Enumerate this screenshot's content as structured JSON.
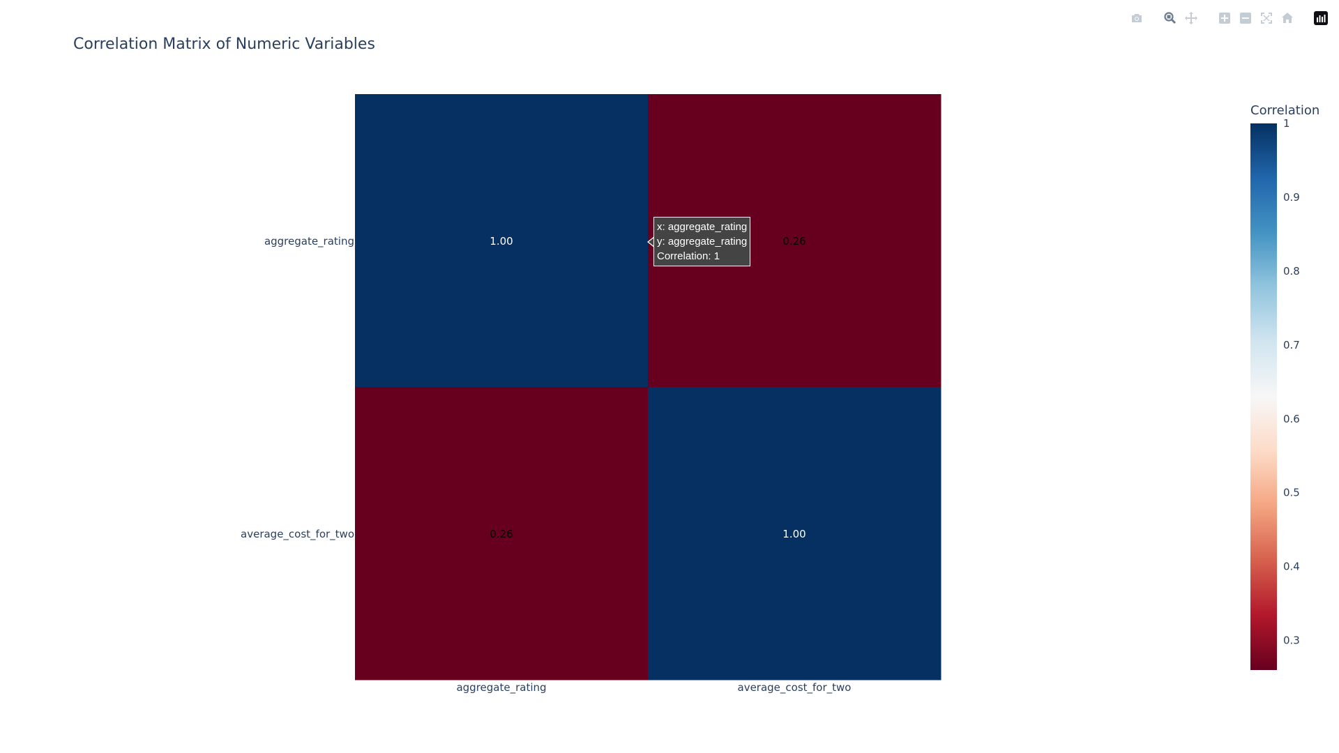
{
  "chart_data": {
    "type": "heatmap",
    "title": "Correlation Matrix of Numeric Variables",
    "x": [
      "aggregate_rating",
      "average_cost_for_two"
    ],
    "y": [
      "aggregate_rating",
      "average_cost_for_two"
    ],
    "z": [
      [
        1.0,
        0.26
      ],
      [
        0.26,
        1.0
      ]
    ],
    "text": [
      [
        "1.00",
        "0.26"
      ],
      [
        "0.26",
        "1.00"
      ]
    ],
    "colorscale": "RdBu",
    "colorbar": {
      "title": "Correlation",
      "ticks": [
        "0.3",
        "0.4",
        "0.5",
        "0.6",
        "0.7",
        "0.8",
        "0.9",
        "1"
      ],
      "tick_values": [
        0.3,
        0.4,
        0.5,
        0.6,
        0.7,
        0.8,
        0.9,
        1.0
      ],
      "range": [
        0.26,
        1.0
      ]
    },
    "colors": {
      "high": "#053061",
      "low": "#67001f"
    }
  },
  "tooltip": {
    "line1": "x: aggregate_rating",
    "line2": "y: aggregate_rating",
    "line3": "Correlation: 1"
  },
  "modebar": {
    "icons": [
      "camera-icon",
      "zoom-icon",
      "pan-icon",
      "zoom-in-icon",
      "zoom-out-icon",
      "autoscale-icon",
      "home-icon",
      "plotly-logo-icon"
    ]
  }
}
